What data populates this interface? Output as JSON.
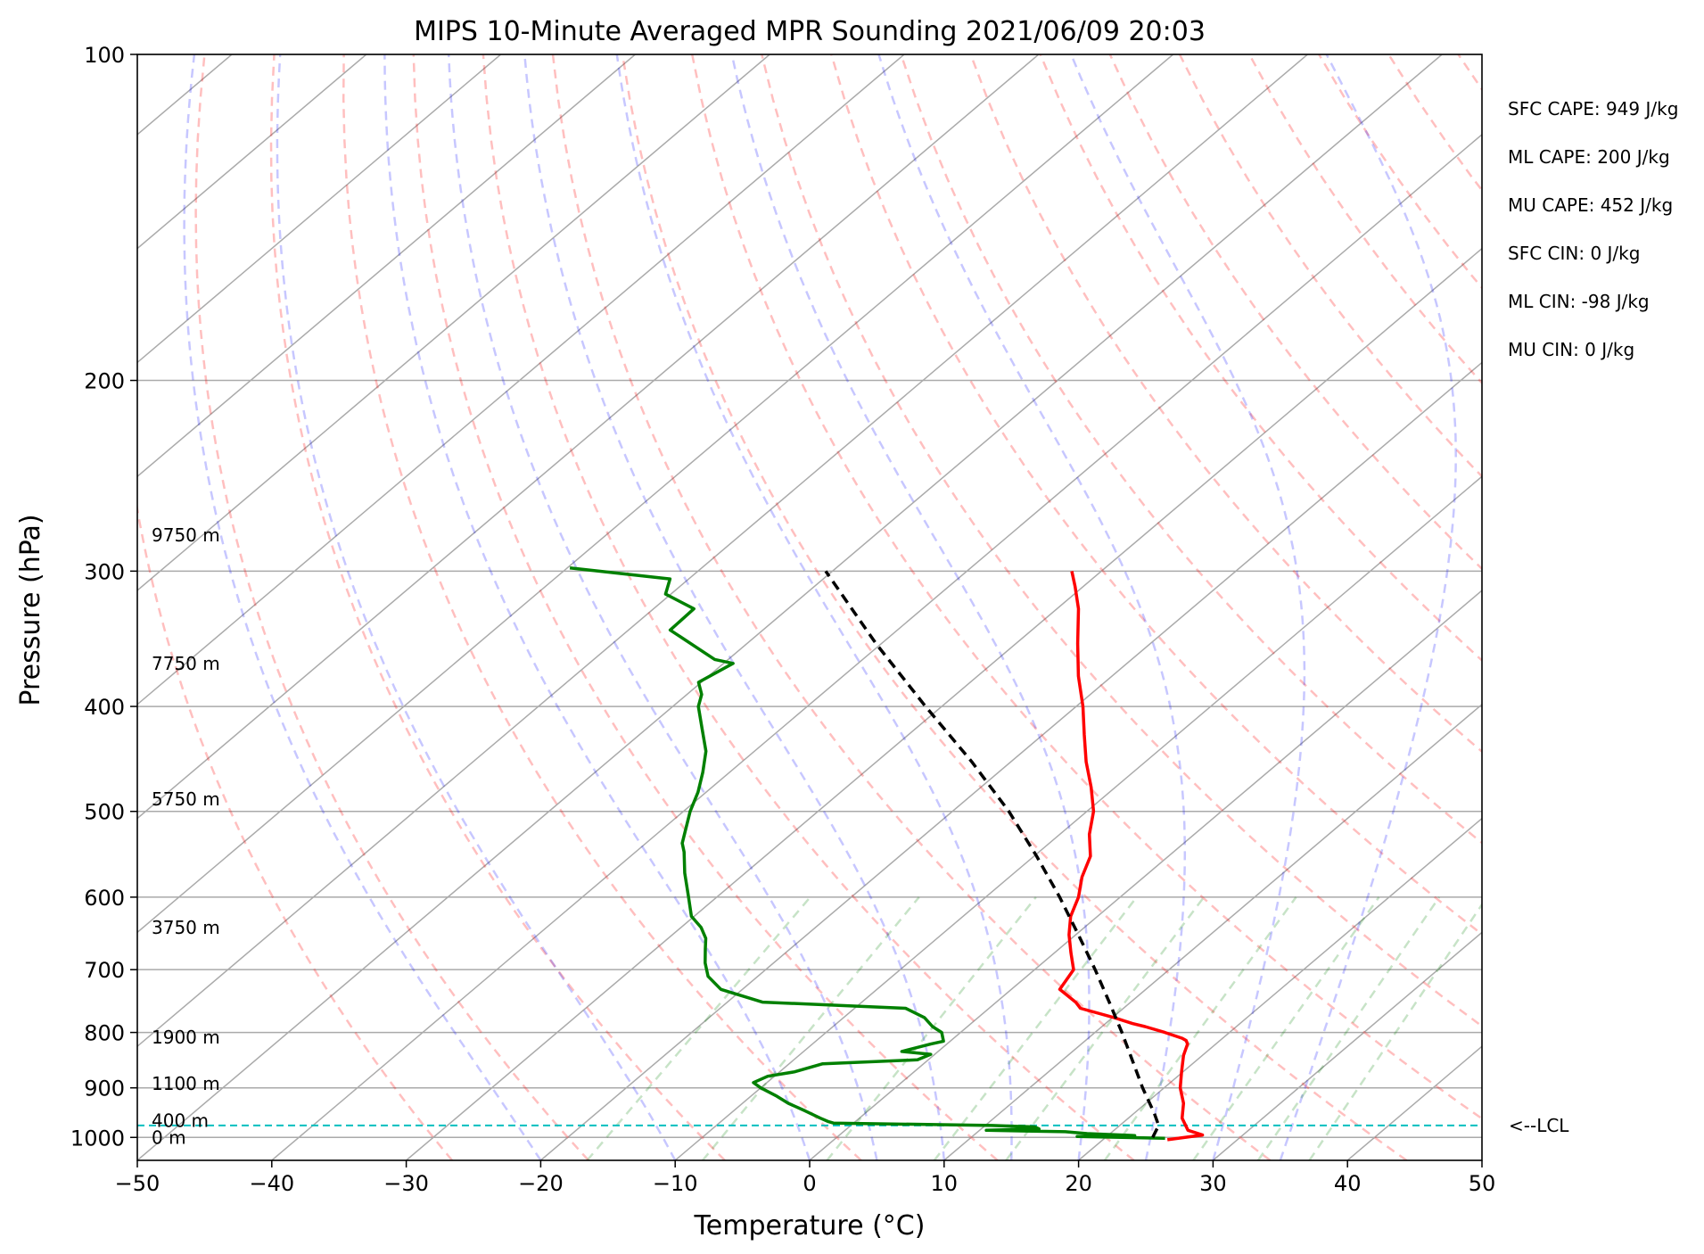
{
  "chart_data": {
    "type": "line",
    "title": "MIPS 10-Minute Averaged MPR Sounding 2021/06/09 20:03",
    "xlabel": "Temperature (°C)",
    "ylabel": "Pressure (hPa)",
    "xlim": [
      -50,
      50
    ],
    "ylim": [
      1050,
      100
    ],
    "y_scale": "log",
    "skew": true,
    "grid": true,
    "x_ticks": [
      "−50",
      "−40",
      "−30",
      "−20",
      "−10",
      "0",
      "10",
      "20",
      "30",
      "40",
      "50"
    ],
    "y_ticks": [
      "100",
      "200",
      "300",
      "400",
      "500",
      "600",
      "700",
      "800",
      "900",
      "1000"
    ],
    "height_labels": [
      {
        "text": "0 m",
        "p": 1000
      },
      {
        "text": "400 m",
        "p": 965
      },
      {
        "text": "1100 m",
        "p": 892
      },
      {
        "text": "1900 m",
        "p": 808
      },
      {
        "text": "3750 m",
        "p": 640
      },
      {
        "text": "5750 m",
        "p": 487
      },
      {
        "text": "7750 m",
        "p": 365
      },
      {
        "text": "9750 m",
        "p": 278
      }
    ],
    "lcl": {
      "p": 975,
      "label": "<--LCL"
    },
    "indices": [
      "SFC CAPE: 949 J/kg",
      "ML CAPE: 200 J/kg",
      "MU CAPE: 452 J/kg",
      "SFC CIN: 0 J/kg",
      "ML CIN: -98 J/kg",
      "MU CIN: 0 J/kg"
    ],
    "series": [
      {
        "color": "#ff0000",
        "style": "solid",
        "points": [
          [
            1005,
            24.8
          ],
          [
            995,
            27.0
          ],
          [
            985,
            25.5
          ],
          [
            960,
            24.0
          ],
          [
            930,
            22.8
          ],
          [
            900,
            21.2
          ],
          [
            870,
            19.9
          ],
          [
            840,
            18.6
          ],
          [
            820,
            17.9
          ],
          [
            814,
            17.5
          ],
          [
            810,
            17.0
          ],
          [
            800,
            15.2
          ],
          [
            790,
            13.2
          ],
          [
            785,
            12.0
          ],
          [
            775,
            10.1
          ],
          [
            760,
            6.8
          ],
          [
            750,
            5.9
          ],
          [
            730,
            3.6
          ],
          [
            700,
            2.9
          ],
          [
            675,
            1.2
          ],
          [
            650,
            -0.5
          ],
          [
            625,
            -2.0
          ],
          [
            600,
            -3.1
          ],
          [
            575,
            -4.6
          ],
          [
            550,
            -5.8
          ],
          [
            525,
            -7.8
          ],
          [
            500,
            -9.5
          ],
          [
            475,
            -11.8
          ],
          [
            450,
            -14.4
          ],
          [
            425,
            -16.9
          ],
          [
            400,
            -19.5
          ],
          [
            375,
            -22.5
          ],
          [
            350,
            -25.4
          ],
          [
            325,
            -28.4
          ],
          [
            310,
            -30.6
          ],
          [
            300,
            -32.2
          ]
        ]
      },
      {
        "color": "#008000",
        "style": "solid",
        "points": [
          [
            1002,
            24.5
          ],
          [
            998,
            17.8
          ],
          [
            996,
            22.0
          ],
          [
            992,
            18.3
          ],
          [
            988,
            16.5
          ],
          [
            985,
            10.5
          ],
          [
            982,
            14.3
          ],
          [
            978,
            13.8
          ],
          [
            975,
            10.5
          ],
          [
            970,
            -1.5
          ],
          [
            967,
            -2.0
          ],
          [
            960,
            -2.9
          ],
          [
            945,
            -4.7
          ],
          [
            930,
            -6.6
          ],
          [
            915,
            -8.2
          ],
          [
            900,
            -10.0
          ],
          [
            890,
            -11.0
          ],
          [
            878,
            -10.5
          ],
          [
            870,
            -8.9
          ],
          [
            855,
            -7.5
          ],
          [
            848,
            -0.8
          ],
          [
            838,
            -0.3
          ],
          [
            833,
            -2.7
          ],
          [
            820,
            -1.2
          ],
          [
            815,
            -0.5
          ],
          [
            800,
            -1.4
          ],
          [
            790,
            -2.6
          ],
          [
            775,
            -4.0
          ],
          [
            760,
            -6.2
          ],
          [
            750,
            -17.4
          ],
          [
            730,
            -21.6
          ],
          [
            710,
            -23.7
          ],
          [
            690,
            -25.1
          ],
          [
            670,
            -26.3
          ],
          [
            655,
            -27.2
          ],
          [
            640,
            -28.5
          ],
          [
            625,
            -30.2
          ],
          [
            600,
            -32.1
          ],
          [
            570,
            -34.5
          ],
          [
            545,
            -36.4
          ],
          [
            535,
            -37.3
          ],
          [
            500,
            -39.5
          ],
          [
            480,
            -40.6
          ],
          [
            460,
            -42.0
          ],
          [
            440,
            -43.6
          ],
          [
            420,
            -45.8
          ],
          [
            400,
            -48.1
          ],
          [
            390,
            -48.9
          ],
          [
            380,
            -50.2
          ],
          [
            365,
            -49.3
          ],
          [
            362,
            -51.0
          ],
          [
            340,
            -56.9
          ],
          [
            325,
            -57.0
          ],
          [
            315,
            -60.4
          ],
          [
            305,
            -61.4
          ],
          [
            298,
            -69.8
          ]
        ]
      },
      {
        "color": "#000000",
        "style": "dashed",
        "points": [
          [
            1000,
            23.5
          ],
          [
            975,
            22.9
          ],
          [
            950,
            21.5
          ],
          [
            900,
            18.4
          ],
          [
            850,
            15.3
          ],
          [
            800,
            12.0
          ],
          [
            750,
            8.4
          ],
          [
            700,
            4.5
          ],
          [
            650,
            0.2
          ],
          [
            600,
            -4.5
          ],
          [
            550,
            -9.8
          ],
          [
            500,
            -15.8
          ],
          [
            450,
            -22.9
          ],
          [
            400,
            -31.2
          ],
          [
            350,
            -40.4
          ],
          [
            300,
            -50.5
          ]
        ]
      }
    ]
  }
}
